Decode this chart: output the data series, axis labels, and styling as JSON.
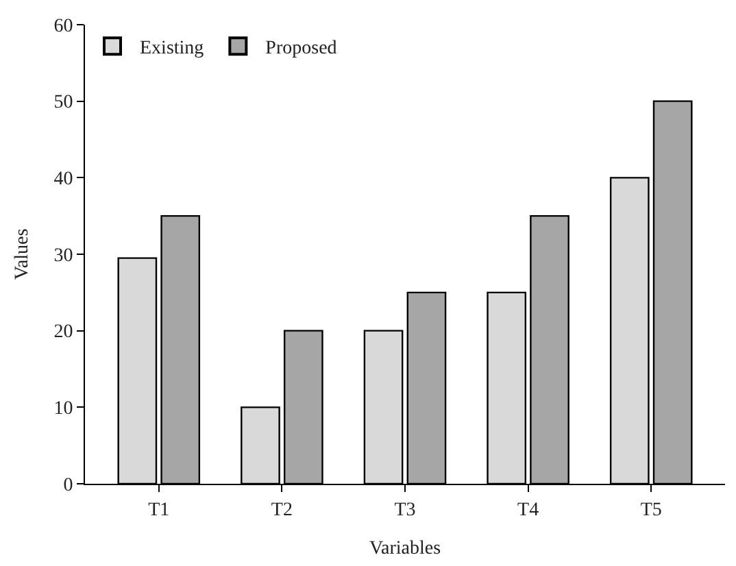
{
  "chart_data": {
    "type": "bar",
    "xlabel": "Variables",
    "ylabel": "Values",
    "categories": [
      "T1",
      "T2",
      "T3",
      "T4",
      "T5"
    ],
    "series": [
      {
        "name": "Existing",
        "color": "#d9d9d9",
        "values": [
          29.5,
          10,
          20,
          25,
          40
        ]
      },
      {
        "name": "Proposed",
        "color": "#a6a6a6",
        "values": [
          35,
          20,
          25,
          35,
          50
        ]
      }
    ],
    "ylim": [
      0,
      60
    ],
    "yticks": [
      0,
      10,
      20,
      30,
      40,
      50,
      60
    ],
    "legend": "top left"
  }
}
